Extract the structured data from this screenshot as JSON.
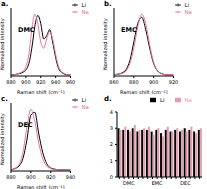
{
  "chart_data": [
    {
      "type": "line",
      "title": "a.",
      "annotations": [
        "DMC"
      ],
      "xlabel": "Raman shift (cm⁻¹)",
      "ylabel": "Normalized intensity",
      "x": [
        880,
        884,
        888,
        892,
        896,
        900,
        904,
        908,
        912,
        916,
        920,
        924,
        928,
        932,
        936,
        940,
        944,
        948,
        952,
        956,
        960
      ],
      "series": [
        {
          "name": "Li",
          "color": "#000000",
          "values": [
            0.02,
            0.02,
            0.03,
            0.04,
            0.06,
            0.1,
            0.2,
            0.45,
            0.8,
            0.98,
            0.85,
            0.6,
            0.65,
            0.75,
            0.55,
            0.3,
            0.12,
            0.06,
            0.03,
            0.02,
            0.02
          ]
        },
        {
          "name": "Na",
          "color": "#e8759a",
          "values": [
            0.02,
            0.02,
            0.03,
            0.05,
            0.08,
            0.15,
            0.35,
            0.75,
            1.0,
            0.85,
            0.55,
            0.45,
            0.6,
            0.72,
            0.6,
            0.35,
            0.15,
            0.07,
            0.04,
            0.02,
            0.02
          ]
        }
      ],
      "xlim": [
        880,
        960
      ],
      "xticks": [
        880,
        900,
        920,
        940,
        960
      ],
      "ylim": [
        0,
        1.1
      ],
      "tick_labels": "x",
      "legend": "upper right",
      "grid": false
    },
    {
      "type": "line",
      "title": "b.",
      "annotations": [
        "EMC"
      ],
      "xlabel": "Raman shift (cm⁻¹)",
      "ylabel": "Normalized intensity",
      "x": [
        860,
        864,
        868,
        872,
        876,
        880,
        884,
        888,
        892,
        896,
        900,
        904,
        908,
        912,
        916,
        920
      ],
      "series": [
        {
          "name": "Li",
          "color": "#000000",
          "values": [
            0.02,
            0.03,
            0.05,
            0.1,
            0.25,
            0.55,
            0.85,
            0.95,
            0.75,
            0.45,
            0.2,
            0.08,
            0.04,
            0.02,
            0.02,
            0.02
          ]
        },
        {
          "name": "Na",
          "color": "#e8759a",
          "values": [
            0.02,
            0.03,
            0.04,
            0.08,
            0.2,
            0.45,
            0.8,
            1.0,
            0.85,
            0.5,
            0.22,
            0.08,
            0.04,
            0.02,
            0.02,
            0.02
          ]
        }
      ],
      "xlim": [
        860,
        920
      ],
      "xticks": [
        860,
        880,
        900,
        920
      ],
      "ylim": [
        0,
        1.1
      ],
      "tick_labels": "x",
      "legend": "upper right",
      "grid": false
    },
    {
      "type": "line",
      "title": "c.",
      "annotations": [
        "DEC"
      ],
      "xlabel": "Raman shift (cm⁻¹)",
      "ylabel": "Normalized intensity",
      "x": [
        880,
        884,
        888,
        892,
        896,
        900,
        904,
        908,
        912,
        916,
        920,
        924,
        928,
        932,
        936,
        940
      ],
      "series": [
        {
          "name": "Li",
          "color": "#000000",
          "values": [
            0.02,
            0.04,
            0.08,
            0.2,
            0.5,
            0.9,
            0.95,
            0.6,
            0.3,
            0.12,
            0.05,
            0.03,
            0.02,
            0.02,
            0.02,
            0.02
          ]
        },
        {
          "name": "Na",
          "color": "#e8759a",
          "values": [
            0.02,
            0.04,
            0.1,
            0.3,
            0.7,
            1.0,
            0.8,
            0.45,
            0.2,
            0.08,
            0.04,
            0.02,
            0.02,
            0.02,
            0.02,
            0.02
          ]
        }
      ],
      "xlim": [
        880,
        940
      ],
      "xticks": [
        880,
        900,
        920,
        940
      ],
      "ylim": [
        0,
        1.1
      ],
      "tick_labels": "x",
      "legend": "upper right",
      "grid": false
    },
    {
      "type": "bar",
      "title": "d.",
      "categories": [
        null,
        null,
        "DMC",
        null,
        null,
        null,
        null,
        null,
        "EMC",
        null,
        null,
        null,
        null,
        null,
        "DEC",
        null,
        null,
        null
      ],
      "series": [
        {
          "name": "Li",
          "color": "#000000",
          "values": [
            3.0,
            2.9,
            2.9,
            3.0,
            2.8,
            2.9,
            2.9,
            2.8,
            2.9,
            2.7,
            2.9,
            2.8,
            2.9,
            2.8,
            3.0,
            2.9,
            2.8,
            2.9
          ]
        },
        {
          "name": "Na",
          "color": "#e79bb0",
          "values": [
            2.9,
            3.1,
            2.8,
            3.2,
            2.9,
            3.0,
            3.1,
            2.6,
            3.0,
            2.5,
            3.1,
            2.8,
            3.0,
            2.9,
            2.8,
            3.1,
            2.7,
            3.0
          ]
        }
      ],
      "ylim": [
        0,
        4
      ],
      "yticks": [
        0,
        1,
        2,
        3,
        4
      ],
      "legend": "upper right",
      "grid": false
    }
  ]
}
